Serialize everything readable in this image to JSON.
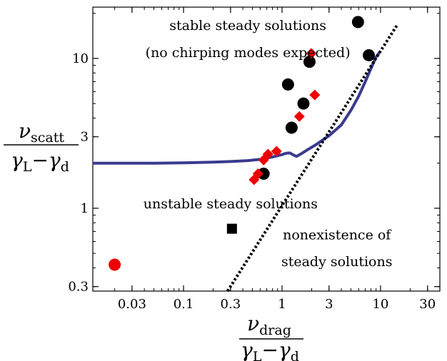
{
  "chart_data": {
    "type": "scatter",
    "log_x": true,
    "log_y": true,
    "xlim": [
      0.012,
      40
    ],
    "ylim": [
      0.28,
      22
    ],
    "x_ticks": [
      {
        "value": 0.03,
        "label": "0.03"
      },
      {
        "value": 0.1,
        "label": "0.1"
      },
      {
        "value": 0.3,
        "label": "0.3"
      },
      {
        "value": 1,
        "label": "1"
      },
      {
        "value": 3,
        "label": "3"
      },
      {
        "value": 10,
        "label": "10"
      },
      {
        "value": 30,
        "label": "30"
      }
    ],
    "y_ticks": [
      {
        "value": 0.3,
        "label": "0.3"
      },
      {
        "value": 1,
        "label": "1"
      },
      {
        "value": 3,
        "label": "3"
      },
      {
        "value": 10,
        "label": "10"
      }
    ],
    "xlabel": {
      "numerator_symbol": "ν",
      "numerator_sub": "drag",
      "denominator_a": "γ",
      "denominator_a_sub": "L",
      "denominator_minus": "−",
      "denominator_b": "γ",
      "denominator_b_sub": "d"
    },
    "ylabel": {
      "numerator_symbol": "ν",
      "numerator_sub": "scatt",
      "denominator_a": "γ",
      "denominator_a_sub": "L",
      "denominator_minus": "−",
      "denominator_b": "γ",
      "denominator_b_sub": "d"
    },
    "annotations": [
      {
        "text": "stable steady solutions",
        "x": 0.45,
        "y": 15.5,
        "anchor": "middle"
      },
      {
        "text": "(no chirping modes expected)",
        "x": 0.45,
        "y": 10.2,
        "anchor": "middle"
      },
      {
        "text": "unstable steady solutions",
        "x": 0.3,
        "y": 1.0,
        "anchor": "middle"
      },
      {
        "text": "nonexistence of",
        "x": 3.6,
        "y": 0.62,
        "anchor": "middle"
      },
      {
        "text": "steady solutions",
        "x": 3.6,
        "y": 0.41,
        "anchor": "middle"
      }
    ],
    "colors": {
      "curve": "#3a3a8f",
      "dotted_line": "#000000",
      "black_points": "#000000",
      "red_points": "#ee0000"
    },
    "series": [
      {
        "type": "line",
        "style": "solid",
        "points": [
          [
            0.012,
            2.0
          ],
          [
            0.05,
            2.0
          ],
          [
            0.1,
            2.01
          ],
          [
            0.2,
            2.03
          ],
          [
            0.3,
            2.05
          ],
          [
            0.45,
            2.08
          ],
          [
            0.6,
            2.12
          ],
          [
            0.8,
            2.2
          ],
          [
            1.0,
            2.28
          ],
          [
            1.1,
            2.33
          ],
          [
            1.2,
            2.34
          ],
          [
            1.3,
            2.27
          ],
          [
            1.4,
            2.22
          ],
          [
            1.55,
            2.3
          ],
          [
            1.8,
            2.45
          ],
          [
            2.2,
            2.65
          ],
          [
            3.0,
            3.05
          ],
          [
            4.0,
            3.6
          ],
          [
            5.0,
            4.5
          ],
          [
            6.0,
            5.6
          ],
          [
            7.0,
            7.0
          ],
          [
            8.0,
            8.6
          ],
          [
            9.0,
            10.2
          ],
          [
            10.0,
            11.2
          ]
        ]
      },
      {
        "type": "line",
        "style": "dotted",
        "points": [
          [
            0.28,
            0.28
          ],
          [
            15,
            17
          ]
        ]
      },
      {
        "type": "scatter",
        "marker": "circle",
        "points": [
          [
            0.02,
            0.42
          ],
          [
            0.65,
            1.7
          ],
          [
            1.15,
            6.7
          ],
          [
            1.25,
            3.45
          ],
          [
            1.65,
            5.0
          ],
          [
            1.9,
            9.5
          ],
          [
            5.9,
            17.5
          ],
          [
            7.6,
            10.5
          ]
        ]
      },
      {
        "type": "scatter",
        "marker": "square",
        "points": [
          [
            0.31,
            0.73
          ]
        ]
      },
      {
        "type": "scatter",
        "marker": "diamond",
        "points": [
          [
            0.52,
            1.55
          ],
          [
            0.57,
            1.7
          ],
          [
            0.65,
            2.1
          ],
          [
            0.72,
            2.3
          ],
          [
            0.88,
            2.4
          ],
          [
            1.5,
            4.1
          ],
          [
            1.98,
            10.8
          ],
          [
            2.15,
            5.7
          ]
        ]
      }
    ]
  }
}
